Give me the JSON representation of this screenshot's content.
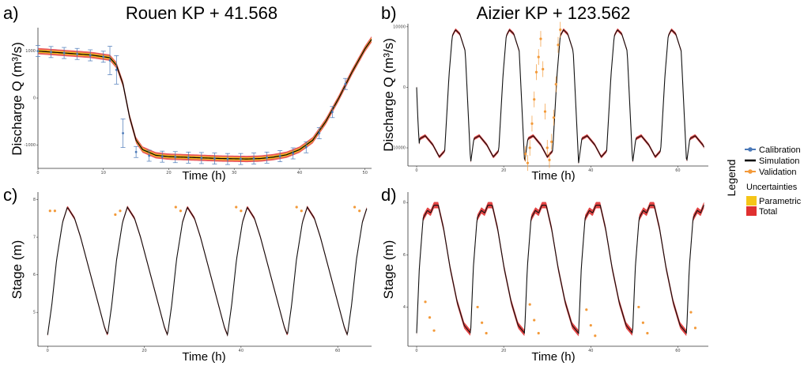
{
  "panels_text": {
    "a": {
      "letter": "a)",
      "title": "Rouen KP + 41.568",
      "xlabel": "Time (h)",
      "ylabel": "Discharge Q (m³/s)"
    },
    "b": {
      "letter": "b)",
      "title": "Aizier KP + 123.562",
      "xlabel": "Time (h)",
      "ylabel": "Discharge Q (m³/s)"
    },
    "c": {
      "letter": "c)",
      "title": "",
      "xlabel": "Time (h)",
      "ylabel": "Stage (m)"
    },
    "d": {
      "letter": "d)",
      "title": "",
      "xlabel": "Time (h)",
      "ylabel": "Stage (m)"
    }
  },
  "legend": {
    "title": "Legend",
    "items": [
      {
        "label": "Calibration",
        "color": "#4a78b8"
      },
      {
        "label": "Simulation",
        "color": "#000000"
      },
      {
        "label": "Validation",
        "color": "#f39a3a"
      }
    ],
    "uncertainty_title": "Uncertainties",
    "uncertainty_items": [
      {
        "label": "Parametric",
        "color": "#f5c518"
      },
      {
        "label": "Total",
        "color": "#e03030"
      }
    ]
  },
  "chart_data": [
    {
      "panel": "a",
      "type": "line",
      "title": "Rouen KP + 41.568",
      "xlabel": "Time (h)",
      "ylabel": "Discharge Q (m³/s)",
      "xlim": [
        0,
        51
      ],
      "ylim": [
        -1500,
        1500
      ],
      "xticks": [
        0,
        10,
        20,
        30,
        40,
        50
      ],
      "xticklabels": [
        "0",
        "10",
        "20",
        "30",
        "40",
        "50"
      ],
      "yticks": [
        -1000,
        0,
        1000
      ],
      "yticklabels": [
        "-1000",
        "0",
        "1000"
      ],
      "series": [
        {
          "name": "Simulation",
          "x": [
            0,
            4,
            8,
            11,
            12,
            13,
            14,
            15,
            16,
            18,
            20,
            24,
            28,
            32,
            34,
            36,
            38,
            40,
            42,
            44,
            46,
            48,
            50,
            51
          ],
          "y": [
            1000,
            960,
            920,
            860,
            700,
            300,
            -400,
            -900,
            -1100,
            -1220,
            -1250,
            -1270,
            -1290,
            -1300,
            -1290,
            -1260,
            -1210,
            -1100,
            -900,
            -500,
            0,
            550,
            1050,
            1250
          ]
        },
        {
          "name": "Calibration",
          "x": [
            0,
            2,
            4,
            6,
            8,
            10,
            11,
            12,
            13,
            15,
            17,
            19,
            21,
            23,
            25,
            27,
            29,
            31,
            33,
            35,
            37,
            39,
            41,
            43,
            45,
            47
          ],
          "y": [
            1000,
            980,
            960,
            940,
            910,
            880,
            800,
            600,
            -750,
            -1150,
            -1230,
            -1250,
            -1260,
            -1270,
            -1280,
            -1290,
            -1300,
            -1300,
            -1290,
            -1270,
            -1240,
            -1180,
            -1050,
            -750,
            -300,
            300
          ]
        }
      ]
    },
    {
      "panel": "b",
      "type": "line",
      "title": "Aizier KP + 123.562",
      "xlabel": "Time (h)",
      "ylabel": "Discharge Q (m³/s)",
      "xlim": [
        -2,
        67
      ],
      "ylim": [
        -13000,
        10500
      ],
      "xticks": [
        0,
        20,
        40,
        60
      ],
      "xticklabels": [
        "0",
        "20",
        "40",
        "60"
      ],
      "yticks": [
        -10000,
        0,
        10000
      ],
      "yticklabels": [
        "-10000",
        "0",
        "10000"
      ],
      "cycle_period_h": 12.4,
      "cycle_shape": {
        "phase": [
          0,
          0.06,
          0.16,
          0.3,
          0.42,
          0.52,
          0.6,
          0.66,
          0.72,
          0.8,
          0.9,
          1.0
        ],
        "q": [
          -12500,
          -8500,
          -8000,
          -9500,
          -11500,
          -10500,
          2000,
          8500,
          9500,
          8800,
          6000,
          -12500
        ]
      },
      "series": [
        {
          "name": "Simulation",
          "x_start": 0,
          "x_end": 66,
          "start_value": 0
        },
        {
          "name": "Validation",
          "x": [
            25.0,
            25.5,
            26.0,
            26.5,
            27.0,
            27.5,
            28.0,
            28.5,
            29.0,
            29.5,
            30.0,
            30.5,
            31.0,
            31.5,
            32.0,
            32.5,
            33.0
          ],
          "y": [
            -11000,
            -12500,
            -10000,
            -6000,
            -2000,
            2500,
            5000,
            8000,
            3000,
            -4000,
            -10000,
            -12000,
            -9000,
            -5000,
            500,
            7000,
            9500
          ]
        }
      ]
    },
    {
      "panel": "c",
      "type": "line",
      "title": "",
      "xlabel": "Time (h)",
      "ylabel": "Stage (m)",
      "xlim": [
        -2,
        67
      ],
      "ylim": [
        4.1,
        8.2
      ],
      "xticks": [
        0,
        20,
        40,
        60
      ],
      "xticklabels": [
        "0",
        "20",
        "40",
        "60"
      ],
      "yticks": [
        5,
        6,
        7,
        8
      ],
      "yticklabels": [
        "5",
        "6",
        "7",
        "8"
      ],
      "cycle_period_h": 12.4,
      "cycle_shape": {
        "phase": [
          0,
          0.07,
          0.15,
          0.25,
          0.33,
          0.45,
          0.55,
          0.65,
          0.75,
          0.85,
          0.95,
          1.0
        ],
        "h": [
          4.4,
          5.2,
          6.4,
          7.4,
          7.8,
          7.5,
          7.0,
          6.4,
          5.8,
          5.2,
          4.6,
          4.4
        ]
      },
      "series": [
        {
          "name": "Simulation",
          "x_start": 0,
          "x_end": 66
        },
        {
          "name": "Validation",
          "x": [
            0.5,
            1.5,
            14.0,
            15.0,
            26.5,
            27.5,
            39.0,
            40.0,
            51.5,
            52.5,
            63.5,
            64.5
          ],
          "y": [
            7.7,
            7.7,
            7.6,
            7.7,
            7.8,
            7.7,
            7.8,
            7.7,
            7.8,
            7.7,
            7.8,
            7.7
          ]
        }
      ]
    },
    {
      "panel": "d",
      "type": "line",
      "title": "",
      "xlabel": "Time (h)",
      "ylabel": "Stage (m)",
      "xlim": [
        -2,
        67
      ],
      "ylim": [
        2.5,
        8.4
      ],
      "xticks": [
        0,
        20,
        40,
        60
      ],
      "xticklabels": [
        "0",
        "20",
        "40",
        "60"
      ],
      "yticks": [
        4,
        6,
        8
      ],
      "yticklabels": [
        "4",
        "6",
        "8"
      ],
      "cycle_period_h": 12.4,
      "cycle_shape": {
        "phase": [
          0,
          0.05,
          0.12,
          0.2,
          0.26,
          0.32,
          0.4,
          0.5,
          0.62,
          0.75,
          0.88,
          1.0
        ],
        "h": [
          3.0,
          5.5,
          7.4,
          7.7,
          7.6,
          7.9,
          7.9,
          7.0,
          5.5,
          4.2,
          3.3,
          3.0
        ]
      },
      "series": [
        {
          "name": "Simulation",
          "x_start": 0,
          "x_end": 66
        },
        {
          "name": "Validation",
          "x": [
            2,
            3,
            4,
            14,
            15,
            16,
            26,
            27,
            28,
            39,
            40,
            41,
            51,
            52,
            53,
            63,
            64
          ],
          "y": [
            4.2,
            3.6,
            3.1,
            4.0,
            3.4,
            3.0,
            4.1,
            3.5,
            3.0,
            3.9,
            3.3,
            2.9,
            4.0,
            3.4,
            3.0,
            3.8,
            3.2
          ]
        }
      ]
    }
  ]
}
